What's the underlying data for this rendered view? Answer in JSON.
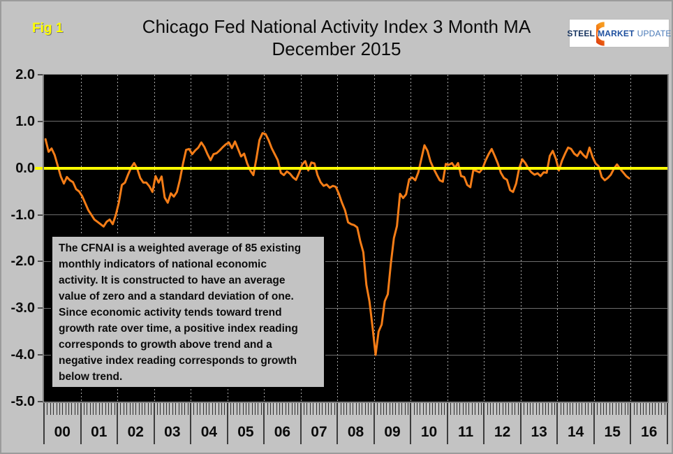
{
  "header": {
    "fig_label": "Fig 1",
    "title_line1": "Chicago Fed National Activity Index 3 Month MA",
    "title_line2": "December 2015"
  },
  "logo": {
    "word1": "STEEL",
    "word2": "MARKET",
    "word3": "UPDATE",
    "crescent_color_top": "#f79a1f",
    "crescent_color_bottom": "#d93a12"
  },
  "note_box": {
    "lines": [
      "The CFNAI is a weighted average of 85 existing",
      "monthly indicators of national economic",
      "activity. It is constructed to have an average",
      "value of zero and a standard deviation of one.",
      "Since economic activity tends toward trend",
      "growth rate over time, a positive index reading",
      "corresponds to growth above trend and a",
      "negative index reading corresponds to growth",
      "below trend."
    ]
  },
  "chart_data": {
    "type": "line",
    "title": "Chicago Fed National Activity Index 3 Month MA",
    "subtitle": "December 2015",
    "frequency": "monthly",
    "x_start": "2000-01",
    "x_end": "2015-12",
    "x_tick_labels": [
      "00",
      "01",
      "02",
      "03",
      "04",
      "05",
      "06",
      "07",
      "08",
      "09",
      "10",
      "11",
      "12",
      "13",
      "14",
      "15",
      "16"
    ],
    "y_tick_labels": [
      "2.0",
      "1.0",
      "0.0",
      "-1.0",
      "-2.0",
      "-3.0",
      "-4.0",
      "-5.0"
    ],
    "ylim": [
      -5,
      2
    ],
    "grid": true,
    "plot_bg": "#000000",
    "zero_line_color": "#ffff00",
    "series": [
      {
        "name": "CFNAI 3 Month Moving Average",
        "color": "#f57d17",
        "values": [
          0.62,
          0.35,
          0.42,
          0.28,
          0.05,
          -0.18,
          -0.33,
          -0.19,
          -0.26,
          -0.3,
          -0.45,
          -0.5,
          -0.6,
          -0.75,
          -0.9,
          -1.0,
          -1.1,
          -1.15,
          -1.2,
          -1.25,
          -1.15,
          -1.1,
          -1.2,
          -1.0,
          -0.74,
          -0.36,
          -0.31,
          -0.14,
          0.01,
          0.11,
          -0.01,
          -0.21,
          -0.31,
          -0.31,
          -0.39,
          -0.51,
          -0.17,
          -0.31,
          -0.18,
          -0.63,
          -0.74,
          -0.54,
          -0.61,
          -0.51,
          -0.24,
          0.1,
          0.39,
          0.41,
          0.3,
          0.38,
          0.44,
          0.55,
          0.45,
          0.3,
          0.17,
          0.3,
          0.32,
          0.38,
          0.45,
          0.51,
          0.55,
          0.43,
          0.57,
          0.41,
          0.25,
          0.31,
          0.1,
          -0.05,
          -0.15,
          0.2,
          0.6,
          0.75,
          0.73,
          0.6,
          0.43,
          0.3,
          0.17,
          -0.1,
          -0.15,
          -0.07,
          -0.12,
          -0.2,
          -0.25,
          -0.1,
          0.08,
          0.15,
          -0.05,
          0.12,
          0.1,
          -0.15,
          -0.3,
          -0.38,
          -0.35,
          -0.42,
          -0.38,
          -0.4,
          -0.55,
          -0.74,
          -0.9,
          -1.16,
          -1.2,
          -1.22,
          -1.27,
          -1.57,
          -1.8,
          -2.5,
          -2.85,
          -3.4,
          -4.0,
          -3.5,
          -3.35,
          -2.85,
          -2.7,
          -2.05,
          -1.5,
          -1.24,
          -0.55,
          -0.64,
          -0.56,
          -0.24,
          -0.2,
          -0.26,
          -0.09,
          0.2,
          0.49,
          0.37,
          0.14,
          -0.01,
          -0.14,
          -0.26,
          -0.29,
          0.09,
          0.07,
          0.11,
          0.01,
          0.11,
          -0.17,
          -0.19,
          -0.36,
          -0.41,
          -0.04,
          -0.06,
          -0.09,
          -0.01,
          0.16,
          0.3,
          0.41,
          0.26,
          0.1,
          -0.1,
          -0.21,
          -0.25,
          -0.47,
          -0.51,
          -0.33,
          0.0,
          0.19,
          0.11,
          -0.01,
          -0.09,
          -0.14,
          -0.11,
          -0.17,
          -0.09,
          -0.1,
          0.26,
          0.37,
          0.2,
          -0.05,
          0.16,
          0.31,
          0.44,
          0.41,
          0.31,
          0.26,
          0.36,
          0.28,
          0.22,
          0.44,
          0.24,
          0.1,
          0.04,
          -0.19,
          -0.26,
          -0.21,
          -0.14,
          -0.01,
          0.08,
          -0.01,
          -0.09,
          -0.17,
          -0.22
        ]
      }
    ]
  }
}
